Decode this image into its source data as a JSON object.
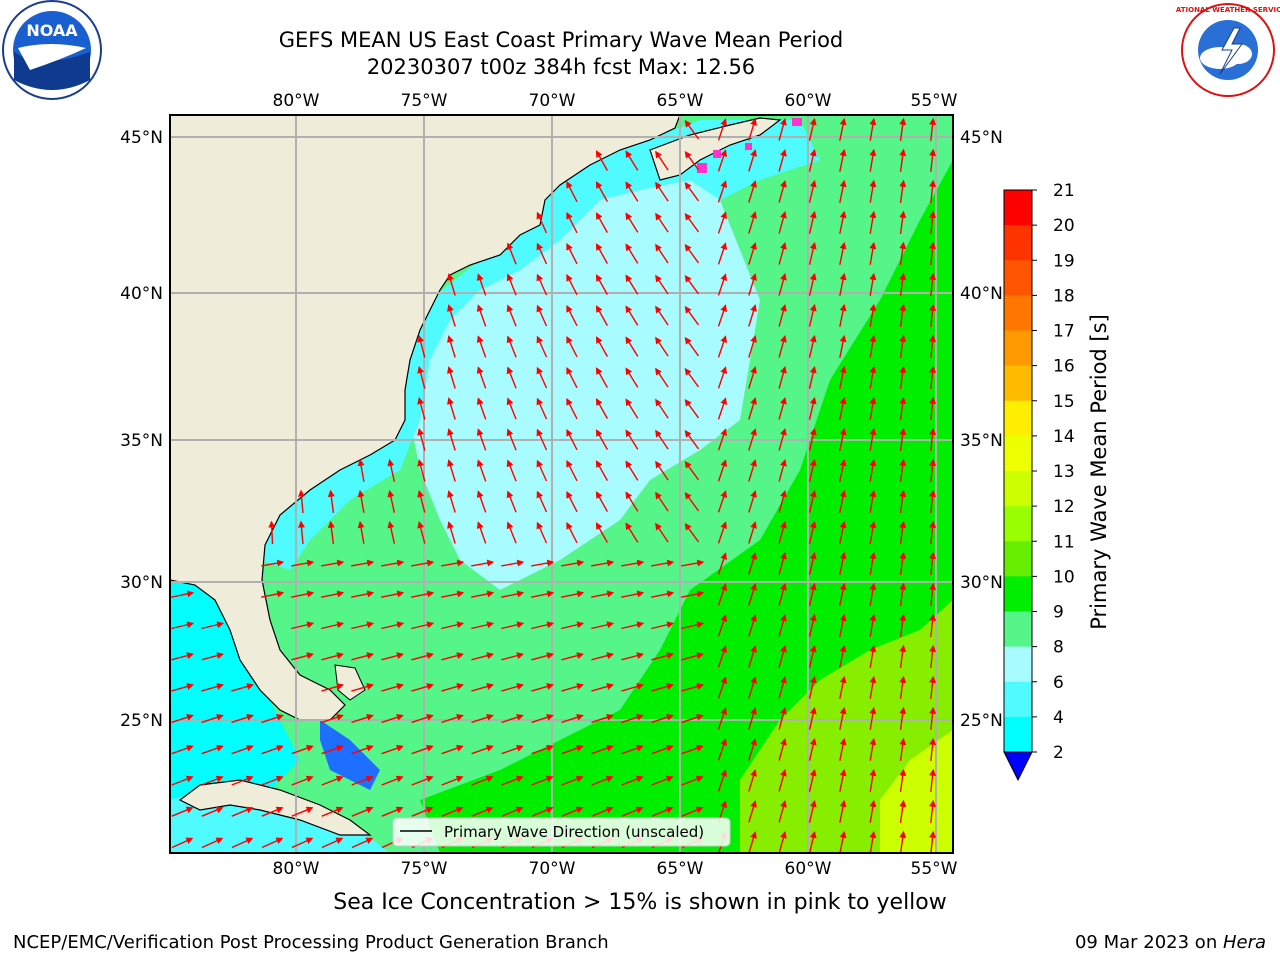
{
  "header": {
    "title_line1": "GEFS MEAN US East Coast Primary Wave Mean Period",
    "title_line2": "20230307 t00z 384h fcst   Max: 12.56"
  },
  "logos": {
    "left": {
      "name": "noaa-logo",
      "text": "NOAA"
    },
    "right": {
      "name": "nws-logo",
      "text": "NATIONAL WEATHER SERVICE"
    }
  },
  "axes": {
    "lon_labels": [
      "80°W",
      "75°W",
      "70°W",
      "65°W",
      "60°W",
      "55°W"
    ],
    "lat_labels": [
      "45°N",
      "40°N",
      "35°N",
      "30°N",
      "25°N"
    ]
  },
  "legend": {
    "label": "Primary Wave Direction (unscaled)"
  },
  "colorbar": {
    "title": "Primary Wave Mean Period [s]",
    "ticks": [
      "21",
      "20",
      "19",
      "18",
      "17",
      "16",
      "15",
      "14",
      "13",
      "12",
      "11",
      "10",
      "9",
      "8",
      "6",
      "4",
      "2"
    ],
    "colors": [
      "#ff0000",
      "#ff3300",
      "#ff5500",
      "#ff7700",
      "#ff9900",
      "#ffbb00",
      "#ffee00",
      "#eeff00",
      "#ccff00",
      "#99ff00",
      "#66ee00",
      "#00ee00",
      "#55f58a",
      "#a8fbff",
      "#50fbff",
      "#00ffff",
      "#0099ff",
      "#0044ff"
    ],
    "extend_color": "#0000ff"
  },
  "map_colors": {
    "land": "#efedda",
    "ocean_low": "#00ffff",
    "ocean_cyan": "#50fbff",
    "ocean_pale": "#a8fbff",
    "ocean_mint": "#55f58a",
    "ocean_green": "#00ee00",
    "ocean_lime": "#88ee00",
    "ocean_yellow": "#ccff00",
    "ocean_blue": "#1e6fff",
    "arrow": "#ff0000",
    "ice_pink": "#ff33cc",
    "grid": "#b0b0b0"
  },
  "note": "Sea Ice Concentration > 15% is shown in pink to yellow",
  "footer": {
    "left": "NCEP/EMC/Verification Post Processing Product Generation Branch",
    "right_date": "09 Mar 2023 on ",
    "right_host": "Hera"
  }
}
